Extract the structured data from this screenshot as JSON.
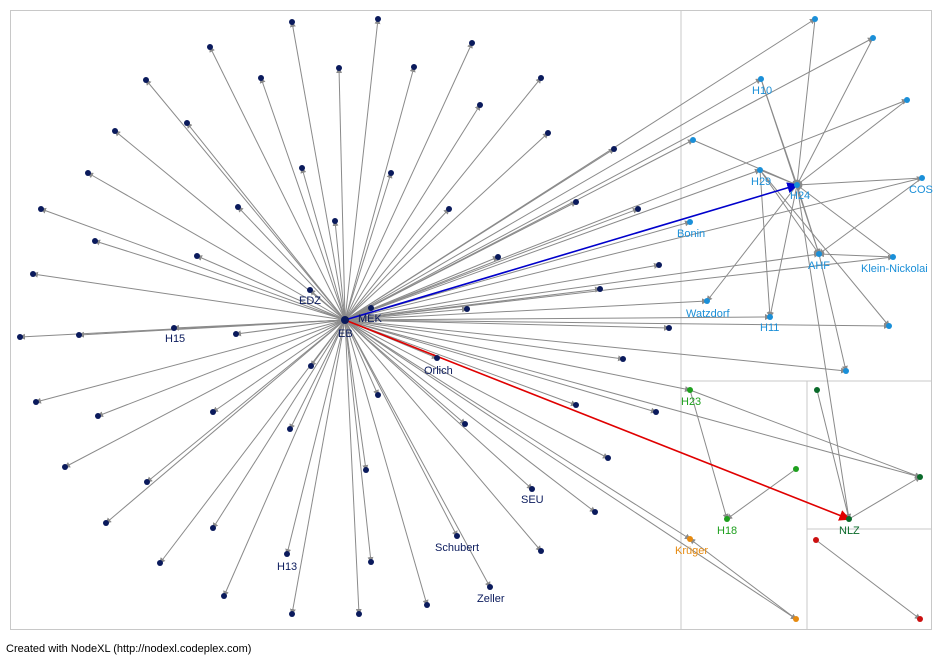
{
  "footer": {
    "credit": "Created with NodeXL (http://nodexl.codeplex.com)"
  },
  "colors": {
    "edge": "#8a8a8a",
    "highlight_blue": "#0000cc",
    "highlight_red": "#e00000",
    "group_navy": "#0a1a5c",
    "group_blue": "#1a8fd8",
    "group_green": "#1ea01e",
    "group_darkgreen": "#0a6a2a",
    "group_orange": "#e68a10",
    "group_red": "#cc1010",
    "box_border": "#c8c8c8"
  },
  "labels": {
    "eb": "EB",
    "mek": "MEK",
    "edz": "EDZ",
    "h15": "H15",
    "orlich": "Orlich",
    "seu": "SEU",
    "schubert": "Schubert",
    "zeller": "Zeller",
    "h13": "H13",
    "h10": "H10",
    "h29": "H29",
    "h24": "H24",
    "cos": "COS",
    "bonin": "Bonin",
    "ahf": "AHF",
    "klein_nickolai": "Klein-Nickolai",
    "watzdorf": "Watzdorf",
    "h11": "H11",
    "h23": "H23",
    "h18": "H18",
    "nlz": "NLZ",
    "kruger": "Krüger"
  }
}
